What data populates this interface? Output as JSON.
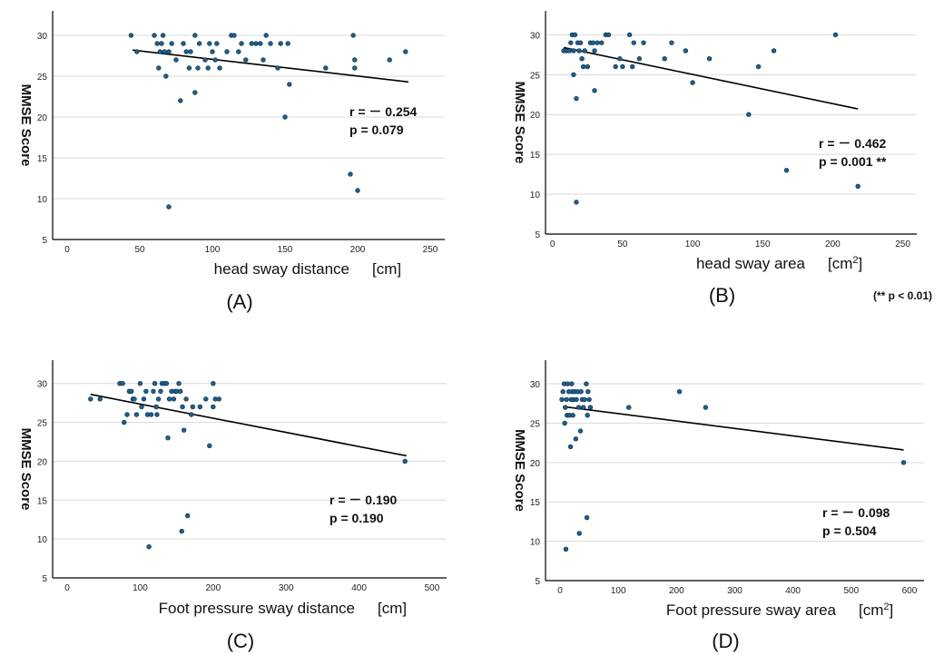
{
  "footnote": "(** p < 0.01)",
  "colors": {
    "point": "#1f5f8b",
    "point_edge": "#0d2f4a",
    "fit_line": "#000000",
    "grid": "#d9d9d9",
    "axis": "#000000"
  },
  "chart_data": [
    {
      "type": "scatter",
      "panel_label": "(A)",
      "xlabel": "head sway distance",
      "xunit": "[cm]",
      "xunit_sup": "",
      "ylabel": "MMSE Score",
      "xlim": [
        -10,
        260
      ],
      "ylim": [
        5,
        33
      ],
      "xticks": [
        0,
        50,
        100,
        150,
        200,
        250
      ],
      "yticks": [
        5,
        10,
        15,
        20,
        25,
        30
      ],
      "gridlines": [
        10,
        15,
        20,
        25,
        30
      ],
      "fit_line": {
        "x": [
          45,
          235
        ],
        "y": [
          28.2,
          24.3
        ]
      },
      "r_text": "r = － 0.254",
      "p_text": "p = 0.079",
      "points": [
        [
          44,
          30
        ],
        [
          48,
          28
        ],
        [
          60,
          30
        ],
        [
          62,
          29
        ],
        [
          63,
          26
        ],
        [
          64,
          28
        ],
        [
          65,
          29
        ],
        [
          66,
          30
        ],
        [
          67,
          28
        ],
        [
          68,
          25
        ],
        [
          70,
          28
        ],
        [
          70,
          9
        ],
        [
          72,
          29
        ],
        [
          75,
          27
        ],
        [
          78,
          22
        ],
        [
          80,
          29
        ],
        [
          82,
          28
        ],
        [
          84,
          26
        ],
        [
          85,
          28
        ],
        [
          88,
          30
        ],
        [
          88,
          23
        ],
        [
          90,
          26
        ],
        [
          91,
          29
        ],
        [
          95,
          27
        ],
        [
          97,
          26
        ],
        [
          98,
          29
        ],
        [
          100,
          28
        ],
        [
          102,
          27
        ],
        [
          103,
          29
        ],
        [
          105,
          26
        ],
        [
          110,
          28
        ],
        [
          113,
          30
        ],
        [
          115,
          30
        ],
        [
          118,
          28
        ],
        [
          120,
          29
        ],
        [
          123,
          27
        ],
        [
          127,
          29
        ],
        [
          130,
          29
        ],
        [
          133,
          29
        ],
        [
          135,
          27
        ],
        [
          137,
          30
        ],
        [
          140,
          29
        ],
        [
          145,
          26
        ],
        [
          147,
          29
        ],
        [
          150,
          20
        ],
        [
          152,
          29
        ],
        [
          153,
          24
        ],
        [
          178,
          26
        ],
        [
          195,
          13
        ],
        [
          197,
          30
        ],
        [
          198,
          26
        ],
        [
          198,
          27
        ],
        [
          200,
          11
        ],
        [
          222,
          27
        ],
        [
          233,
          28
        ]
      ]
    },
    {
      "type": "scatter",
      "panel_label": "(B)",
      "xlabel": "head sway area",
      "xunit": "[cm",
      "xunit_sup": "2",
      "xunit_close": "]",
      "ylabel": "MMSE Score",
      "xlim": [
        -5,
        260
      ],
      "ylim": [
        5,
        33
      ],
      "xticks": [
        0,
        50,
        100,
        150,
        200,
        250
      ],
      "yticks": [
        5,
        10,
        15,
        20,
        25,
        30
      ],
      "gridlines": [
        10,
        15,
        20,
        25,
        30
      ],
      "fit_line": {
        "x": [
          8,
          218
        ],
        "y": [
          28.4,
          20.7
        ]
      },
      "r_text": "r = － 0.462",
      "p_text": "p = 0.001 **",
      "points": [
        [
          8,
          28
        ],
        [
          10,
          28
        ],
        [
          12,
          28
        ],
        [
          13,
          29
        ],
        [
          14,
          30
        ],
        [
          15,
          28
        ],
        [
          15,
          25
        ],
        [
          16,
          30
        ],
        [
          17,
          22
        ],
        [
          17,
          9
        ],
        [
          18,
          29
        ],
        [
          19,
          28
        ],
        [
          20,
          29
        ],
        [
          21,
          27
        ],
        [
          22,
          26
        ],
        [
          23,
          28
        ],
        [
          25,
          26
        ],
        [
          27,
          29
        ],
        [
          29,
          29
        ],
        [
          30,
          28
        ],
        [
          30,
          23
        ],
        [
          32,
          29
        ],
        [
          35,
          29
        ],
        [
          38,
          30
        ],
        [
          40,
          30
        ],
        [
          45,
          26
        ],
        [
          48,
          27
        ],
        [
          50,
          26
        ],
        [
          55,
          30
        ],
        [
          57,
          26
        ],
        [
          58,
          29
        ],
        [
          62,
          27
        ],
        [
          65,
          29
        ],
        [
          80,
          27
        ],
        [
          85,
          29
        ],
        [
          95,
          28
        ],
        [
          100,
          24
        ],
        [
          112,
          27
        ],
        [
          140,
          20
        ],
        [
          147,
          26
        ],
        [
          158,
          28
        ],
        [
          167,
          13
        ],
        [
          202,
          30
        ],
        [
          218,
          11
        ]
      ]
    },
    {
      "type": "scatter",
      "panel_label": "(C)",
      "xlabel": "Foot pressure sway distance",
      "xunit": "[cm]",
      "xunit_sup": "",
      "ylabel": "MMSE Score",
      "xlim": [
        -20,
        520
      ],
      "ylim": [
        5,
        33
      ],
      "xticks": [
        0,
        100,
        200,
        300,
        400,
        500
      ],
      "yticks": [
        5,
        10,
        15,
        20,
        25,
        30
      ],
      "gridlines": [
        10,
        15,
        20,
        25,
        30
      ],
      "fit_line": {
        "x": [
          32,
          465
        ],
        "y": [
          28.6,
          20.7
        ]
      },
      "r_text": "r = － 0.190",
      "p_text": "p = 0.190",
      "points": [
        [
          32,
          28
        ],
        [
          45,
          28
        ],
        [
          72,
          30
        ],
        [
          76,
          30
        ],
        [
          78,
          25
        ],
        [
          82,
          26
        ],
        [
          85,
          29
        ],
        [
          88,
          29
        ],
        [
          90,
          28
        ],
        [
          92,
          28
        ],
        [
          95,
          26
        ],
        [
          100,
          30
        ],
        [
          102,
          27
        ],
        [
          105,
          28
        ],
        [
          108,
          29
        ],
        [
          110,
          26
        ],
        [
          112,
          9
        ],
        [
          115,
          26
        ],
        [
          118,
          29
        ],
        [
          120,
          30
        ],
        [
          122,
          27
        ],
        [
          123,
          26
        ],
        [
          125,
          28
        ],
        [
          128,
          29
        ],
        [
          130,
          30
        ],
        [
          133,
          30
        ],
        [
          136,
          30
        ],
        [
          138,
          23
        ],
        [
          140,
          28
        ],
        [
          143,
          29
        ],
        [
          146,
          28
        ],
        [
          148,
          29
        ],
        [
          150,
          29
        ],
        [
          153,
          30
        ],
        [
          155,
          29
        ],
        [
          157,
          11
        ],
        [
          158,
          27
        ],
        [
          160,
          24
        ],
        [
          163,
          28
        ],
        [
          165,
          13
        ],
        [
          170,
          26
        ],
        [
          172,
          27
        ],
        [
          182,
          27
        ],
        [
          190,
          28
        ],
        [
          195,
          22
        ],
        [
          200,
          27
        ],
        [
          203,
          28
        ],
        [
          208,
          28
        ],
        [
          200,
          30
        ],
        [
          463,
          20
        ]
      ]
    },
    {
      "type": "scatter",
      "panel_label": "(D)",
      "xlabel": "Foot pressure sway area",
      "xunit": "[cm",
      "xunit_sup": "2",
      "xunit_close": "]",
      "ylabel": "MMSE Score",
      "xlim": [
        -25,
        625
      ],
      "ylim": [
        5,
        33
      ],
      "xticks": [
        0,
        100,
        200,
        300,
        400,
        500,
        600
      ],
      "yticks": [
        5,
        10,
        15,
        20,
        25,
        30
      ],
      "gridlines": [
        10,
        15,
        20,
        25,
        30
      ],
      "fit_line": {
        "x": [
          5,
          590
        ],
        "y": [
          27.1,
          21.6
        ]
      },
      "r_text": "r = － 0.098",
      "p_text": "p = 0.504",
      "points": [
        [
          3,
          28
        ],
        [
          5,
          29
        ],
        [
          7,
          30
        ],
        [
          8,
          25
        ],
        [
          9,
          27
        ],
        [
          10,
          9
        ],
        [
          11,
          28
        ],
        [
          12,
          26
        ],
        [
          13,
          30
        ],
        [
          15,
          29
        ],
        [
          16,
          26
        ],
        [
          18,
          22
        ],
        [
          19,
          28
        ],
        [
          20,
          30
        ],
        [
          21,
          29
        ],
        [
          22,
          26
        ],
        [
          23,
          28
        ],
        [
          25,
          29
        ],
        [
          27,
          23
        ],
        [
          28,
          28
        ],
        [
          30,
          29
        ],
        [
          32,
          27
        ],
        [
          33,
          11
        ],
        [
          35,
          24
        ],
        [
          36,
          29
        ],
        [
          38,
          28
        ],
        [
          40,
          27
        ],
        [
          42,
          28
        ],
        [
          45,
          30
        ],
        [
          46,
          13
        ],
        [
          47,
          26
        ],
        [
          48,
          29
        ],
        [
          50,
          28
        ],
        [
          52,
          27
        ],
        [
          118,
          27
        ],
        [
          205,
          29
        ],
        [
          250,
          27
        ],
        [
          590,
          20
        ]
      ]
    }
  ]
}
